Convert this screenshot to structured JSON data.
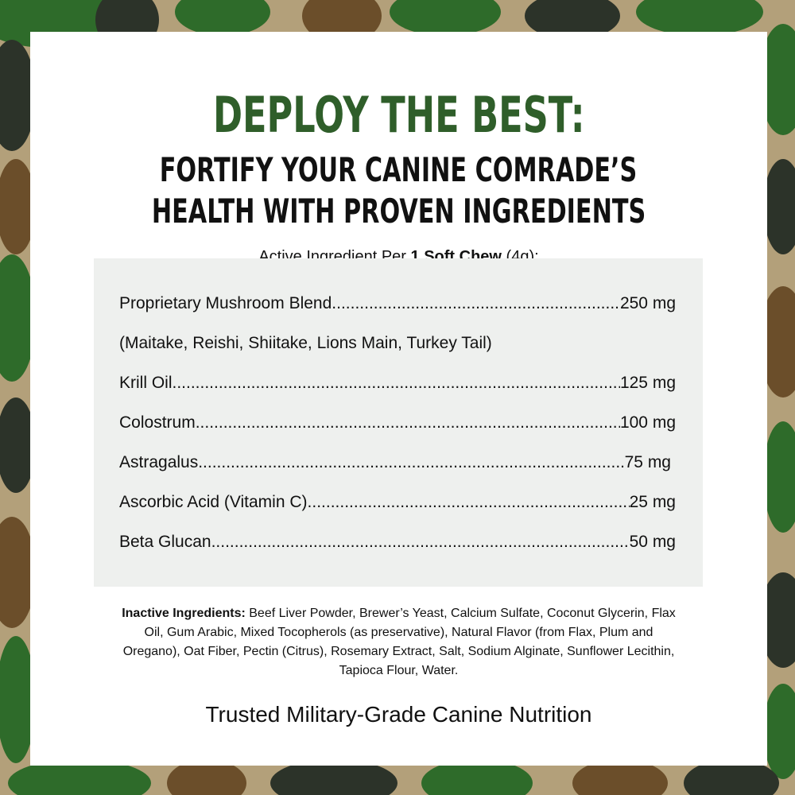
{
  "headline": "DEPLOY THE BEST:",
  "subheadline_line1": "FORTIFY YOUR CANINE COMRADE’S",
  "subheadline_line2": "HEALTH WITH PROVEN INGREDIENTS",
  "serving": {
    "prefix": "Active Ingredient Per ",
    "bold": "1 Soft Chew",
    "suffix": " (4g):"
  },
  "ingredients": [
    {
      "name": "Proprietary Mushroom Blend",
      "amount": "250 mg"
    },
    {
      "name": "(Maitake, Reishi, Shiitake, Lions Main, Turkey Tail)",
      "amount": ""
    },
    {
      "name": "Krill Oil",
      "amount": "125 mg"
    },
    {
      "name": "Colostrum",
      "amount": "100 mg"
    },
    {
      "name": "Astragalus",
      "amount": "75 mg"
    },
    {
      "name": "Ascorbic Acid (Vitamin C)",
      "amount": "25 mg"
    },
    {
      "name": "Beta Glucan",
      "amount": "50 mg"
    }
  ],
  "inactive": {
    "label": "Inactive Ingredients:",
    "text": " Beef Liver Powder, Brewer’s Yeast, Calcium Sulfate, Coconut Glycerin, Flax Oil, Gum Arabic, Mixed Tocopherols (as preservative), Natural Flavor (from Flax, Plum and Oregano), Oat Fiber, Pectin (Citrus), Rosemary Extract, Salt, Sodium Alginate, Sunflower Lecithin, Tapioca Flour, Water."
  },
  "footer": "Trusted Military-Grade Canine Nutrition",
  "colors": {
    "headline": "#2f5e2a",
    "camo_green": "#2e6b2a",
    "camo_dark": "#2c3329",
    "camo_brown": "#6b4e2a",
    "camo_tan": "#b3a07a",
    "table_bg": "#eef0ee"
  }
}
